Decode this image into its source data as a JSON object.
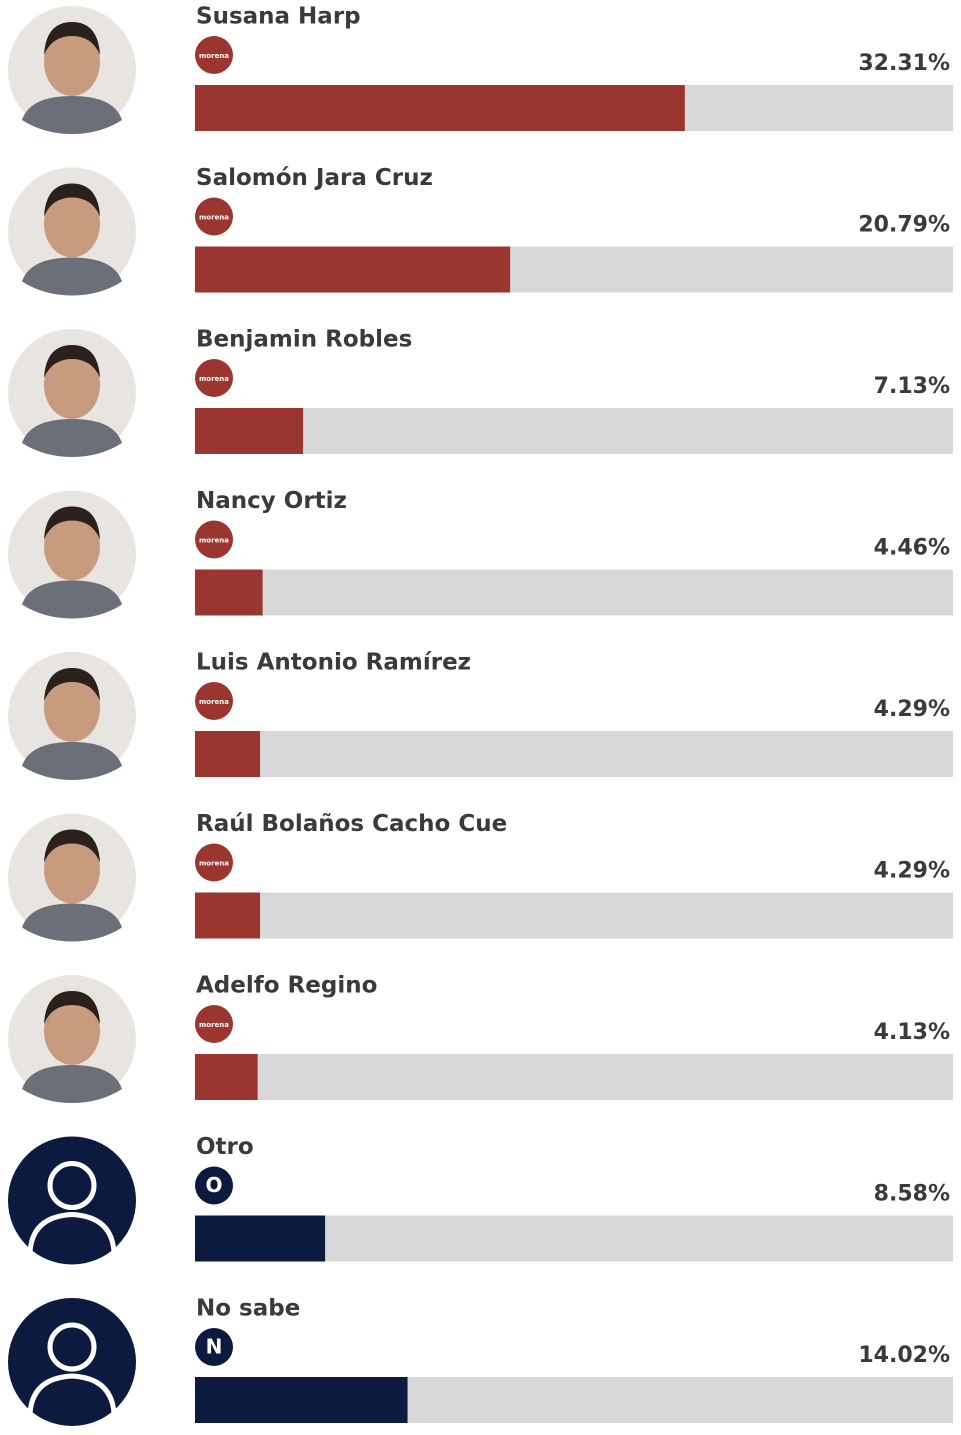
{
  "chart_data": {
    "type": "bar",
    "orientation": "horizontal",
    "categories": [
      "Susana Harp",
      "Salomón Jara Cruz",
      "Benjamin Robles",
      "Nancy Ortiz",
      "Luis Antonio Ramírez",
      "Raúl Bolaños Cacho Cue",
      "Adelfo Regino",
      "Otro",
      "No sabe"
    ],
    "badges": [
      "morena",
      "morena",
      "morena",
      "morena",
      "morena",
      "morena",
      "morena",
      "O",
      "N"
    ],
    "values": [
      32.31,
      20.79,
      7.13,
      4.46,
      4.29,
      4.29,
      4.13,
      8.58,
      14.02
    ],
    "value_labels": [
      "32.31%",
      "20.79%",
      "7.13%",
      "4.46%",
      "4.29%",
      "4.29%",
      "4.13%",
      "8.58%",
      "14.02%"
    ],
    "colors": [
      "#9b3530",
      "#9b3530",
      "#9b3530",
      "#9b3530",
      "#9b3530",
      "#9b3530",
      "#9b3530",
      "#0d1a3f",
      "#0d1a3f"
    ],
    "track_color": "#d9d8d8",
    "xlim": [
      0,
      50
    ]
  }
}
